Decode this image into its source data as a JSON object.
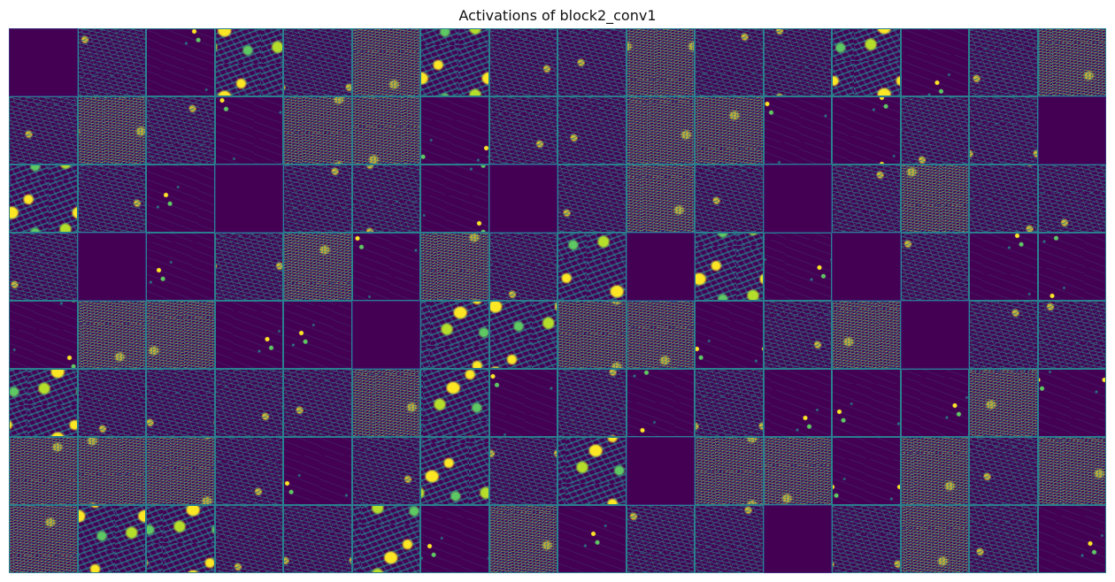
{
  "figure": {
    "title": "Activations of block2_conv1",
    "grid": {
      "rows": 8,
      "cols": 16
    }
  },
  "tiles": [
    "dead",
    "noise",
    "sparse",
    "blob",
    "noise",
    "dense",
    "blob",
    "noise",
    "noise",
    "dense",
    "noise",
    "noise",
    "blob",
    "sparse",
    "noise",
    "dense",
    "noise",
    "dense",
    "noise",
    "sparse",
    "dense",
    "dense",
    "sparse",
    "noise",
    "noise",
    "dense",
    "dense",
    "sparse",
    "sparse",
    "noise",
    "noise",
    "dead",
    "blob",
    "noise",
    "sparse",
    "dead",
    "noise",
    "noise",
    "sparse",
    "dead",
    "noise",
    "dense",
    "noise",
    "dead",
    "noise",
    "dense",
    "noise",
    "noise",
    "noise",
    "dead",
    "sparse",
    "noise",
    "dense",
    "sparse",
    "dense",
    "noise",
    "blob",
    "dead",
    "blob",
    "sparse",
    "dead",
    "noise",
    "sparse",
    "sparse",
    "sparse",
    "dense",
    "dense",
    "sparse",
    "sparse",
    "dead",
    "blob",
    "blob",
    "dense",
    "dense",
    "sparse",
    "noise",
    "dense",
    "dead",
    "noise",
    "noise",
    "blob",
    "noise",
    "noise",
    "noise",
    "noise",
    "dense",
    "blob",
    "sparse",
    "noise",
    "sparse",
    "noise",
    "sparse",
    "sparse",
    "sparse",
    "dense",
    "sparse",
    "dense",
    "dense",
    "dense",
    "noise",
    "sparse",
    "noise",
    "blob",
    "noise",
    "blob",
    "dead",
    "dense",
    "dense",
    "sparse",
    "dense",
    "noise",
    "dense",
    "dense",
    "blob",
    "blob",
    "noise",
    "noise",
    "blob",
    "sparse",
    "dense",
    "sparse",
    "noise",
    "noise",
    "dead",
    "noise",
    "dense",
    "noise",
    "sparse"
  ],
  "colormap": {
    "name": "viridis",
    "low": "#440154",
    "mid_low": "#3b528b",
    "mid": "#21918c",
    "mid_high": "#5ec962",
    "high": "#fde725"
  }
}
